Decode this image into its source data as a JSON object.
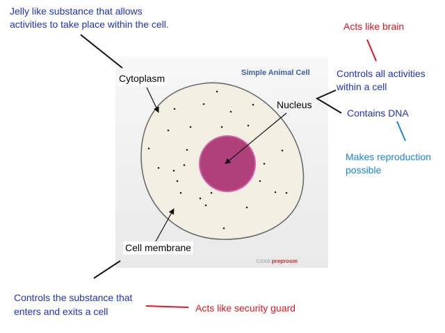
{
  "diagram": {
    "title": "Simple Animal Cell",
    "credit_year": "©2006",
    "credit_brand": "preproom"
  },
  "labels": {
    "cytoplasm": "Cytoplasm",
    "nucleus": "Nucleus",
    "cell_membrane": "Cell membrane"
  },
  "annotations": {
    "cytoplasm_desc_line1": "Jelly like substance that allows",
    "cytoplasm_desc_line2": "activities to take place within the cell.",
    "nucleus_brain": "Acts like brain",
    "nucleus_controls_line1": "Controls all activities",
    "nucleus_controls_line2": "within a cell",
    "nucleus_dna": "Contains DNA",
    "dna_reproduction_line1": "Makes reproduction",
    "dna_reproduction_line2": "possible",
    "membrane_desc_line1": "Controls the substance that",
    "membrane_desc_line2": "enters and exits a cell",
    "membrane_guard": "Acts like security guard"
  },
  "colors": {
    "cell_fill": "#f3efe3",
    "cell_outline": "#6b6b6b",
    "nucleus_fill": "#b0407a",
    "nucleus_outline": "#d060a8",
    "heading_blue": "#1a33c8",
    "analogy_red": "#e0141e",
    "detail_cyan": "#1a84e0"
  }
}
